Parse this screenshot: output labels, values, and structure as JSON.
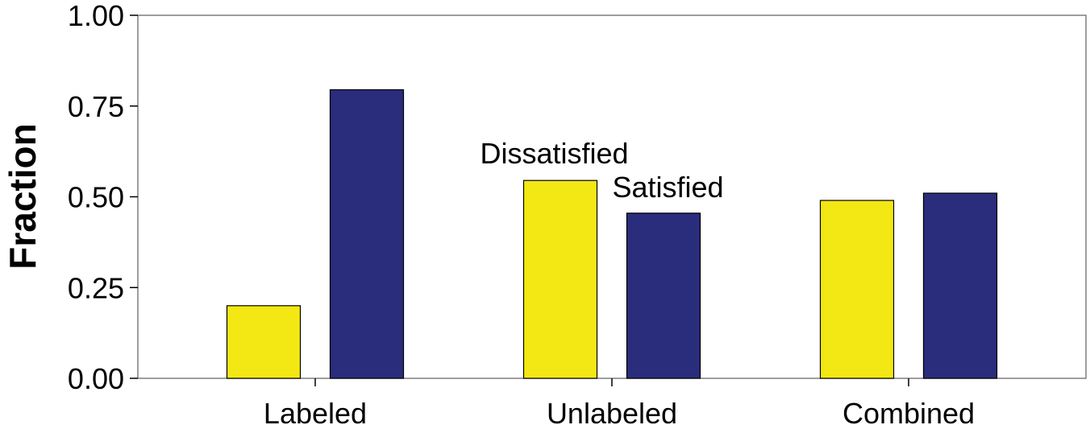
{
  "chart_data": {
    "type": "bar",
    "categories": [
      "Labeled",
      "Unlabeled",
      "Combined"
    ],
    "series": [
      {
        "name": "Dissatisfied",
        "values": [
          0.2,
          0.545,
          0.49
        ],
        "color": "#f3e813"
      },
      {
        "name": "Satisfied",
        "values": [
          0.795,
          0.455,
          0.51
        ],
        "color": "#2a2c7c"
      }
    ],
    "title": "",
    "xlabel": "",
    "ylabel": "Fraction",
    "ylim": [
      0,
      1
    ],
    "yticks": [
      0,
      0.25,
      0.5,
      0.75,
      1
    ],
    "ytick_labels": [
      "0.00",
      "0.25",
      "0.50",
      "0.75",
      "1.00"
    ],
    "grid": false,
    "legend": "inline labels above Unlabeled bars"
  }
}
